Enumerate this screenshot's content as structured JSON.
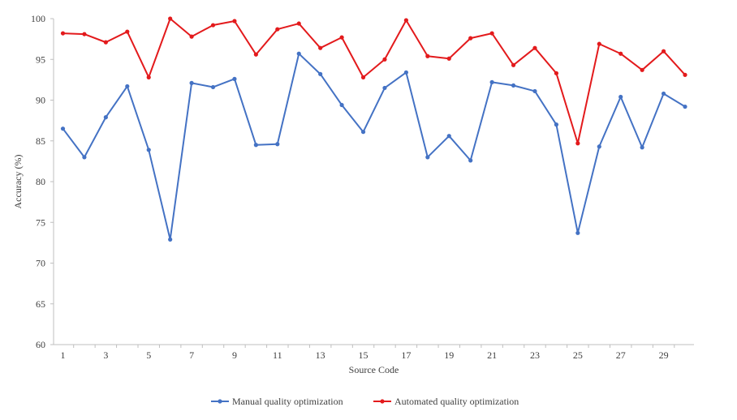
{
  "chart_data": {
    "type": "line",
    "title": "",
    "xlabel": "Source Code",
    "ylabel": "Accuracy (%)",
    "ylim": [
      60,
      100
    ],
    "yticks": [
      60,
      65,
      70,
      75,
      80,
      85,
      90,
      95,
      100
    ],
    "xlim": [
      1,
      30
    ],
    "xtick_labels": [
      1,
      3,
      5,
      7,
      9,
      11,
      13,
      15,
      17,
      19,
      21,
      23,
      25,
      27,
      29
    ],
    "grid": false,
    "legend_position": "bottom",
    "x": [
      1,
      2,
      3,
      4,
      5,
      6,
      7,
      8,
      9,
      10,
      11,
      12,
      13,
      14,
      15,
      16,
      17,
      18,
      19,
      20,
      21,
      22,
      23,
      24,
      25,
      26,
      27,
      28,
      29,
      30
    ],
    "series": [
      {
        "name": "Manual quality optimization",
        "color": "#4472C4",
        "values": [
          86.5,
          83.0,
          87.9,
          91.7,
          83.9,
          72.9,
          92.1,
          91.6,
          92.6,
          84.5,
          84.6,
          95.7,
          93.2,
          89.4,
          86.1,
          91.5,
          93.4,
          83.0,
          85.6,
          82.6,
          92.2,
          91.8,
          91.1,
          87.0,
          73.7,
          84.3,
          90.4,
          84.2,
          90.8,
          89.2
        ]
      },
      {
        "name": "Automated quality optimization",
        "color": "#E31A1C",
        "values": [
          98.2,
          98.1,
          97.1,
          98.4,
          92.8,
          100.0,
          97.8,
          99.2,
          99.7,
          95.6,
          98.7,
          99.4,
          96.4,
          97.7,
          92.8,
          95.0,
          99.8,
          95.4,
          95.1,
          97.6,
          98.2,
          94.3,
          96.4,
          93.3,
          84.7,
          96.9,
          95.7,
          93.7,
          96.0,
          93.1
        ]
      }
    ]
  }
}
